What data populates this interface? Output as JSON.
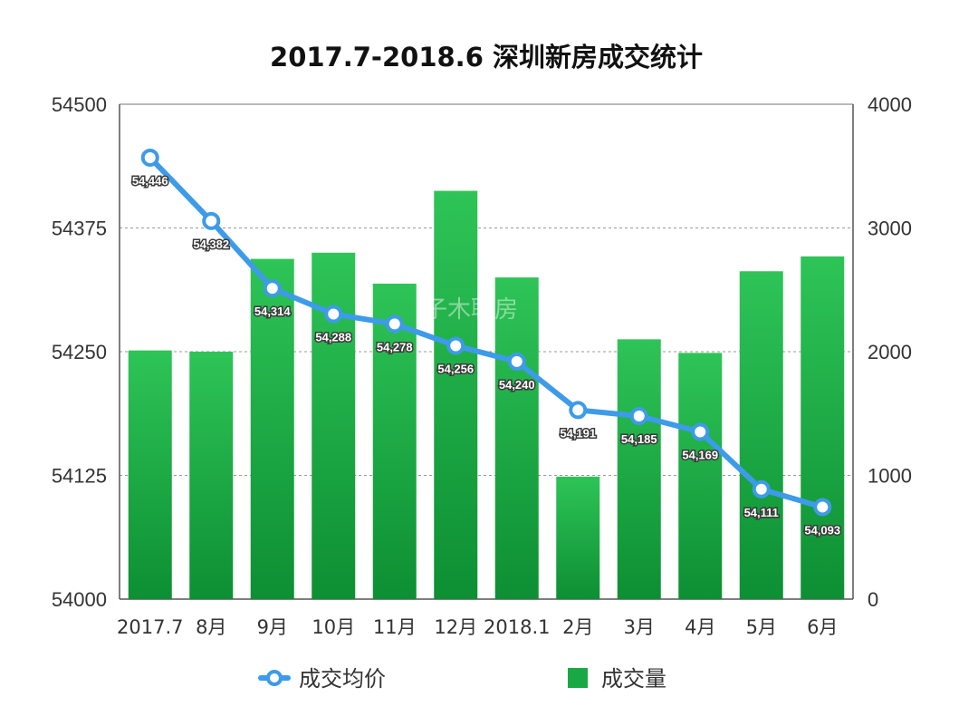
{
  "chart_data": {
    "type": "bar",
    "title": "2017.7-2018.6 深圳新房成交统计",
    "categories": [
      "2017.7",
      "8月",
      "9月",
      "10月",
      "11月",
      "12月",
      "2018.1",
      "2月",
      "3月",
      "4月",
      "5月",
      "6月"
    ],
    "series": [
      {
        "name": "成交量",
        "type": "bar",
        "axis": "right",
        "color": "#22b14c",
        "values": [
          2010,
          2000,
          2750,
          2800,
          2550,
          3300,
          2600,
          990,
          2100,
          1990,
          2650,
          2770
        ]
      },
      {
        "name": "成交均价",
        "type": "line",
        "axis": "left",
        "color": "#3d9be9",
        "values": [
          54446,
          54382,
          54314,
          54288,
          54278,
          54256,
          54240,
          54191,
          54185,
          54169,
          54111,
          54093
        ],
        "labels": [
          "54,446",
          "54,382",
          "54,314",
          "54,288",
          "54,278",
          "54,256",
          "54,240",
          "54,191",
          "54,185",
          "54,169",
          "54,111",
          "54,093"
        ]
      }
    ],
    "y_left": {
      "ylim": [
        54000,
        54500
      ],
      "ticks": [
        "54500",
        "54375",
        "54250",
        "54125",
        "54000"
      ],
      "tick_values": [
        54500,
        54375,
        54250,
        54125,
        54000
      ]
    },
    "y_right": {
      "ylim": [
        0,
        4000
      ],
      "ticks": [
        "4000",
        "3000",
        "2000",
        "1000",
        "0"
      ],
      "tick_values": [
        4000,
        3000,
        2000,
        1000,
        0
      ]
    },
    "grid": "horizontal dashed",
    "legend": {
      "placement": "bottom",
      "items": [
        "成交均价",
        "成交量"
      ]
    },
    "watermark": "子木聊房"
  }
}
